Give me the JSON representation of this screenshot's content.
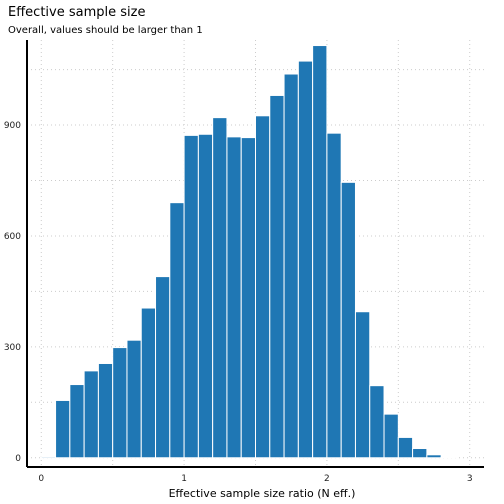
{
  "chart_data": {
    "type": "bar",
    "title": "Effective sample size",
    "subtitle": "Overall, values should be larger than 1",
    "xlabel": "Effective sample size ratio (N eff.)",
    "ylabel": "",
    "bin_width": 0.1,
    "bin_starts": [
      0.0,
      0.1,
      0.2,
      0.3,
      0.4,
      0.5,
      0.6,
      0.7,
      0.8,
      0.9,
      1.0,
      1.1,
      1.2,
      1.3,
      1.4,
      1.5,
      1.6,
      1.7,
      1.8,
      1.9,
      2.0,
      2.1,
      2.2,
      2.3,
      2.4,
      2.5,
      2.6,
      2.7,
      2.8
    ],
    "values": [
      3,
      155,
      198,
      235,
      255,
      298,
      318,
      405,
      490,
      690,
      872,
      875,
      920,
      868,
      866,
      925,
      980,
      1038,
      1073,
      1115,
      878,
      745,
      395,
      195,
      118,
      55,
      25,
      8,
      2
    ],
    "xlim": [
      -0.1,
      3.1
    ],
    "ylim": [
      -25,
      1130
    ],
    "x_ticks": [
      "0",
      "1",
      "2",
      "3"
    ],
    "y_ticks": [
      "0",
      "300",
      "600",
      "900"
    ],
    "grid": true,
    "bar_color": "#1f77b4"
  }
}
